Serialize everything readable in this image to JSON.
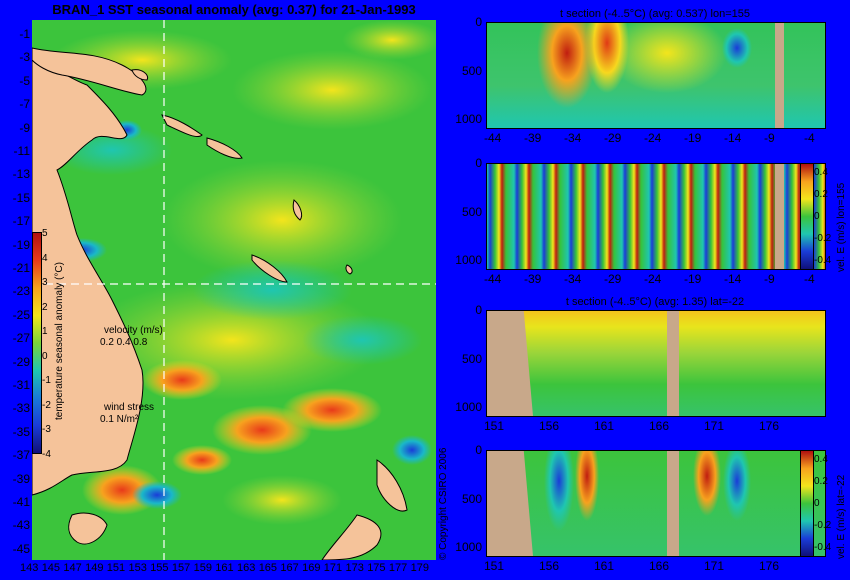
{
  "map": {
    "title": "BRAN_1 SST seasonal anomaly (avg: 0.37) for 21-Jan-1993",
    "lat_labels": [
      "-1",
      "-3",
      "-5",
      "-7",
      "-9",
      "-11",
      "-13",
      "-15",
      "-17",
      "-19",
      "-21",
      "-23",
      "-25",
      "-27",
      "-29",
      "-31",
      "-33",
      "-35",
      "-37",
      "-39",
      "-41",
      "-43",
      "-45"
    ],
    "lon_labels": [
      "143",
      "145",
      "147",
      "149",
      "151",
      "153",
      "155",
      "157",
      "159",
      "161",
      "163",
      "165",
      "167",
      "169",
      "171",
      "173",
      "175",
      "177",
      "179"
    ],
    "colorbar": {
      "ticks": [
        "5",
        "4",
        "3",
        "2",
        "1",
        "0",
        "-1",
        "-2",
        "-3",
        "-4"
      ],
      "label": "temperature seasonal anomaly (°C)"
    },
    "velocity_label": "velocity (m/s)",
    "velocity_scale": "0.2 0.4 0.8",
    "wind_label": "wind stress",
    "wind_scale": "0.1 N/m²",
    "copyright": "© Copyright CSIRO 2006"
  },
  "panels": [
    {
      "title": "t section (-4..5°C) (avg: 0.537) lon=155",
      "yticks": [
        "0",
        "500",
        "1000"
      ],
      "xticks": [
        "-44",
        "-39",
        "-34",
        "-29",
        "-24",
        "-19",
        "-14",
        "-9",
        "-4"
      ],
      "side_label": ""
    },
    {
      "title": "",
      "yticks": [
        "0",
        "500",
        "1000"
      ],
      "xticks": [
        "-44",
        "-39",
        "-34",
        "-29",
        "-24",
        "-19",
        "-14",
        "-9",
        "-4"
      ],
      "cbar_ticks": [
        "0.4",
        "0.2",
        "0",
        "-0.2",
        "-0.4"
      ],
      "side_label": "vel. E (m/s) lon=155"
    },
    {
      "title": "t section (-4..5°C) (avg: 1.35) lat=-22",
      "yticks": [
        "0",
        "500",
        "1000"
      ],
      "xticks": [
        "151",
        "156",
        "161",
        "166",
        "171",
        "176"
      ],
      "side_label": ""
    },
    {
      "title": "",
      "yticks": [
        "0",
        "500",
        "1000"
      ],
      "xticks": [
        "151",
        "156",
        "161",
        "166",
        "171",
        "176"
      ],
      "cbar_ticks": [
        "0.4",
        "0.2",
        "0",
        "-0.2",
        "-0.4"
      ],
      "side_label": "vel. E (m/s) lat=-22"
    }
  ]
}
